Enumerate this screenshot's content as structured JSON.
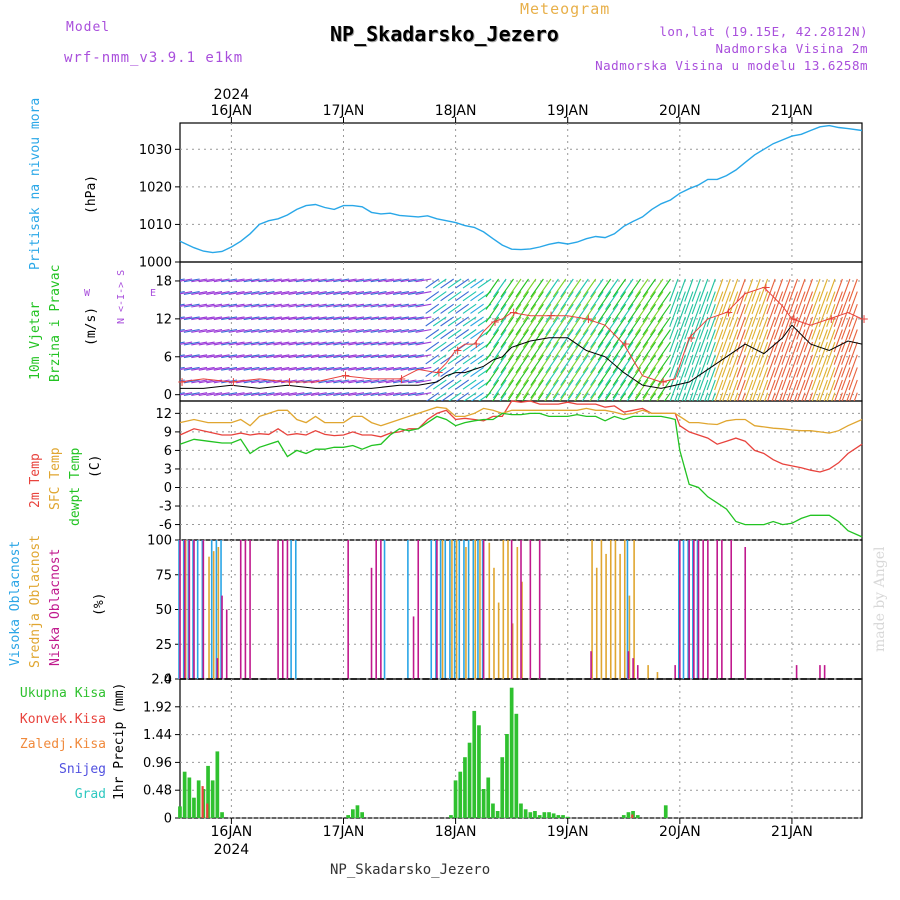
{
  "header": {
    "model_label": "Model",
    "model_name": "wrf-nmm_v3.9.1 e1km",
    "title": "Meteogram",
    "station": "NP_Skadarsko_Jezero",
    "lonlat": "lon,lat (19.15E, 42.2812N)",
    "elevation": "Nadmorska Visina 2m",
    "model_elevation": "Nadmorska Visina u modelu 13.6258m",
    "footer_station": "NP_Skadarsko_Jezero",
    "watermark": "made by Angel"
  },
  "x_axis": {
    "year": "2024",
    "days": [
      "16JAN",
      "17JAN",
      "18JAN",
      "19JAN",
      "20JAN",
      "21JAN"
    ],
    "day_positions_hours": [
      0,
      24,
      48,
      72,
      96,
      120
    ],
    "hours_start": -11,
    "hours_end": 135
  },
  "panels": {
    "pressure": {
      "title": "Pritisak na nivou mora",
      "unit": "(hPa)"
    },
    "wind": {
      "title_line1": "10m Vjetar",
      "title_line2": "Brzina i Pravac",
      "unit": "(m/s)",
      "compass": "N <-I-> S",
      "compass_w": "W",
      "compass_e": "E"
    },
    "temp": {
      "l1": "2m Temp",
      "l2": "SFC Temp",
      "l3": "dewpt Temp",
      "unit": "(C)"
    },
    "cloud": {
      "l1": "Visoka Oblacnost",
      "l2": "Srednja Oblacnost",
      "l3": "Niska Oblacnost",
      "unit": "(%)"
    },
    "precip": {
      "unit": "1hr Precip (mm)",
      "legend": [
        "Ukupna Kisa",
        "Konvek.Kisa",
        "Zaledj.Kisa",
        "Snijeg",
        "Grad"
      ]
    }
  },
  "colors": {
    "pressure": "#29a7e8",
    "t2m": "#e8433d",
    "tsfc": "#e0a630",
    "dewpt": "#22c322",
    "high_cloud": "#2aa5e6",
    "mid_cloud": "#e0a630",
    "low_cloud": "#c0198d",
    "precip_total": "#2fc12f",
    "precip_conv": "#e8433d",
    "precip_frz": "#f08a3c",
    "precip_snow": "#5050e0",
    "precip_grad": "#2ec8c0"
  },
  "chart_data": [
    {
      "type": "line",
      "title": "Pritisak na nivou mora",
      "ylabel": "(hPa)",
      "ylim": [
        1000,
        1037
      ],
      "yticks": [
        1000,
        1010,
        1020,
        1030
      ],
      "grid": true,
      "x_hours": [
        -11,
        -8,
        -6,
        -4,
        -2,
        0,
        2,
        4,
        6,
        8,
        10,
        12,
        14,
        16,
        18,
        20,
        22,
        24,
        26,
        28,
        30,
        32,
        34,
        36,
        38,
        40,
        42,
        44,
        46,
        48,
        50,
        52,
        54,
        56,
        58,
        60,
        62,
        64,
        66,
        68,
        70,
        72,
        74,
        76,
        78,
        80,
        82,
        84,
        86,
        88,
        90,
        92,
        94,
        96,
        98,
        100,
        102,
        104,
        106,
        108,
        110,
        112,
        114,
        116,
        118,
        120,
        122,
        124,
        126,
        128,
        130,
        132,
        135
      ],
      "series": [
        {
          "values": [
            1005.5,
            1003.8,
            1002.9,
            1002.5,
            1002.8,
            1004,
            1005.5,
            1007.5,
            1010,
            1011,
            1011.5,
            1012.5,
            1014,
            1015,
            1015.3,
            1014.5,
            1014,
            1015,
            1015,
            1014.7,
            1013.2,
            1012.8,
            1013,
            1012.4,
            1012.2,
            1012,
            1012.3,
            1011.5,
            1011,
            1010.5,
            1009.7,
            1009.2,
            1008,
            1006.2,
            1004.5,
            1003.4,
            1003.3,
            1003.5,
            1004,
            1004.7,
            1005.2,
            1004.8,
            1005.3,
            1006.2,
            1006.8,
            1006.5,
            1007.5,
            1009.5,
            1010.8,
            1012,
            1014,
            1015.5,
            1016.5,
            1018.3,
            1019.5,
            1020.5,
            1022,
            1022,
            1023,
            1024.5,
            1026.5,
            1028.5,
            1030,
            1031.5,
            1032.5,
            1033.5,
            1034,
            1035,
            1036,
            1036.3,
            1035.8,
            1035.5,
            1035
          ]
        }
      ]
    },
    {
      "type": "line",
      "title": "10m Vjetar Brzina i Pravac",
      "ylabel": "(m/s)",
      "ylim": [
        -1,
        21
      ],
      "yticks": [
        0,
        6,
        12,
        18
      ],
      "grid": true,
      "x_hours": [
        -11,
        -6,
        0,
        6,
        12,
        18,
        24,
        30,
        36,
        40,
        44,
        46,
        48,
        50,
        52,
        54,
        56,
        58,
        60,
        64,
        68,
        72,
        76,
        80,
        84,
        88,
        92,
        95,
        98,
        102,
        106,
        110,
        114,
        118,
        120,
        124,
        128,
        132,
        135
      ],
      "series": [
        {
          "name": "speed",
          "values": [
            1,
            1,
            1.5,
            1,
            1.5,
            1,
            1,
            1,
            1.5,
            1.5,
            2,
            3,
            3.5,
            3.5,
            4,
            4.5,
            5.5,
            6,
            7.5,
            8.5,
            9,
            9,
            7,
            6,
            3.5,
            1.5,
            1,
            1.5,
            2,
            4,
            6,
            8,
            6.5,
            9,
            11,
            8,
            7,
            8.5,
            8
          ]
        },
        {
          "name": "gust",
          "values": [
            2,
            2.5,
            2,
            2.5,
            2,
            2,
            3,
            2.5,
            2.5,
            4,
            3.5,
            5,
            7,
            8,
            8,
            10,
            11.5,
            12,
            13,
            12.5,
            12.5,
            12.5,
            12,
            11,
            8,
            3,
            2,
            2.5,
            9,
            12,
            13,
            16,
            17,
            14,
            12,
            11,
            12,
            13,
            12
          ]
        }
      ]
    },
    {
      "type": "line",
      "title": "2m Temp / SFC Temp / dewpt Temp",
      "ylabel": "(C)",
      "ylim": [
        -8.5,
        14
      ],
      "yticks": [
        -6,
        -3,
        0,
        3,
        6,
        9,
        12
      ],
      "grid": true,
      "x_hours": [
        -11,
        -8,
        -5,
        -2,
        0,
        2,
        4,
        6,
        8,
        10,
        12,
        14,
        16,
        18,
        20,
        22,
        24,
        26,
        28,
        30,
        32,
        34,
        36,
        38,
        40,
        42,
        44,
        46,
        48,
        50,
        52,
        54,
        56,
        58,
        60,
        62,
        64,
        66,
        68,
        70,
        72,
        74,
        76,
        78,
        80,
        82,
        84,
        86,
        88,
        90,
        92,
        94,
        95,
        96,
        98,
        100,
        102,
        104,
        106,
        108,
        110,
        112,
        114,
        116,
        118,
        120,
        122,
        124,
        126,
        128,
        130,
        132,
        135
      ],
      "series": [
        {
          "name": "2m Temp",
          "values": [
            8.5,
            9.5,
            9,
            8.5,
            8.5,
            8.8,
            8.5,
            8.7,
            8.6,
            9.5,
            8.5,
            8.7,
            8.5,
            9.2,
            8.6,
            8.4,
            8.5,
            9,
            8.5,
            8.5,
            8.2,
            8.8,
            9,
            9.5,
            9.5,
            11,
            12,
            12.5,
            11,
            11.2,
            11,
            10.8,
            11.5,
            11.5,
            14,
            13.8,
            14,
            13.5,
            13.5,
            13.5,
            13.8,
            13.5,
            13.5,
            13.5,
            13,
            13.2,
            12.2,
            12.5,
            12.8,
            12,
            12,
            12,
            12,
            10,
            9,
            8.5,
            8,
            7,
            7.5,
            8,
            7.5,
            6,
            5.5,
            4.5,
            3.8,
            3.5,
            3.2,
            2.8,
            2.5,
            3,
            4,
            5.5,
            7
          ]
        },
        {
          "name": "SFC Temp",
          "values": [
            10.5,
            11,
            10.5,
            10.5,
            10.5,
            11,
            10,
            11.5,
            12,
            12.5,
            12.5,
            11,
            10.5,
            11.5,
            10.5,
            10.5,
            10.5,
            11.5,
            11.5,
            10.5,
            10,
            10.5,
            11,
            11.5,
            12,
            12.5,
            13,
            12.8,
            11.5,
            11.5,
            12,
            12.8,
            12.5,
            12,
            12.5,
            12.5,
            12.5,
            12.5,
            12.5,
            12.5,
            12.5,
            12.5,
            12.8,
            12.5,
            12.5,
            12.2,
            11.8,
            12,
            12.5,
            12,
            12,
            12,
            12,
            11.5,
            10.5,
            10.5,
            10.3,
            10.2,
            10.8,
            11,
            11,
            10,
            9.8,
            9.6,
            9.5,
            9.3,
            9.2,
            9.2,
            9,
            8.8,
            9.2,
            10,
            11
          ]
        },
        {
          "name": "dewpt Temp",
          "values": [
            7,
            7.8,
            7.5,
            7.2,
            7.2,
            7.8,
            5.5,
            6.5,
            7,
            7.5,
            5,
            6,
            5.5,
            6.2,
            6.2,
            6.5,
            6.5,
            6.8,
            6.2,
            6.8,
            7,
            8.5,
            9.5,
            9.2,
            9.5,
            10.5,
            11.5,
            11,
            10,
            10.5,
            10.8,
            11,
            11,
            12,
            11.8,
            11.8,
            12,
            12,
            11.5,
            11.5,
            11.5,
            11.8,
            11.5,
            11.5,
            10.8,
            11.5,
            11,
            11.5,
            11.5,
            11.5,
            11.5,
            11.2,
            11,
            6,
            0.5,
            0,
            -1.5,
            -2.5,
            -3.5,
            -5.5,
            -6,
            -6,
            -6,
            -5.5,
            -6,
            -5.8,
            -5,
            -4.5,
            -4.5,
            -4.5,
            -5.5,
            -7,
            -8
          ]
        }
      ]
    },
    {
      "type": "bar",
      "title": "Visoka / Srednja / Niska Oblacnost",
      "ylabel": "(%)",
      "ylim": [
        0,
        100
      ],
      "yticks": [
        0,
        25,
        50,
        75,
        100
      ],
      "grid": true,
      "series": [
        {
          "name": "Visoka Oblacnost",
          "hours": [
            -11,
            -10,
            -9,
            -8,
            -7,
            -6,
            -4,
            -3,
            -2,
            13,
            14,
            33,
            38,
            43,
            44,
            45,
            46,
            47,
            48,
            49,
            50,
            51,
            52,
            53,
            54,
            85,
            96,
            97,
            98,
            99,
            100
          ],
          "values": [
            100,
            100,
            100,
            100,
            100,
            100,
            100,
            100,
            100,
            100,
            100,
            100,
            100,
            100,
            100,
            100,
            100,
            100,
            100,
            100,
            100,
            100,
            100,
            100,
            100,
            100,
            100,
            100,
            100,
            100,
            100
          ]
        },
        {
          "name": "Srednja Oblacnost",
          "hours": [
            -10,
            -5,
            -4,
            -3,
            45,
            47,
            48,
            50,
            52,
            53,
            55,
            56,
            57,
            58,
            59,
            60,
            61,
            62,
            77,
            78,
            79,
            80,
            81,
            82,
            83,
            84,
            85,
            86,
            89,
            91
          ],
          "values": [
            100,
            88,
            92,
            95,
            100,
            100,
            100,
            95,
            100,
            100,
            98,
            80,
            55,
            100,
            100,
            40,
            95,
            70,
            100,
            80,
            100,
            90,
            100,
            100,
            90,
            100,
            60,
            100,
            10,
            5
          ]
        },
        {
          "name": "Niska Oblacnost",
          "hours": [
            -11,
            -10,
            -9,
            -8,
            -6,
            -3,
            -2,
            -1,
            2,
            3,
            4,
            10,
            11,
            12,
            25,
            30,
            31,
            32,
            39,
            40,
            44,
            54,
            60,
            62,
            64,
            66,
            77,
            85,
            86,
            87,
            95,
            96,
            98,
            99,
            100,
            101,
            102,
            104,
            105,
            107,
            110,
            121,
            126,
            127
          ],
          "values": [
            100,
            100,
            100,
            100,
            100,
            15,
            60,
            50,
            100,
            100,
            100,
            100,
            100,
            100,
            100,
            80,
            100,
            100,
            45,
            100,
            100,
            100,
            100,
            100,
            100,
            100,
            20,
            20,
            15,
            10,
            10,
            100,
            100,
            100,
            100,
            100,
            100,
            100,
            100,
            100,
            95,
            10,
            10,
            10
          ]
        }
      ]
    },
    {
      "type": "bar",
      "title": "1hr Precip",
      "ylabel": "1hr Precip (mm)",
      "ylim": [
        0,
        2.4
      ],
      "yticks": [
        0,
        0.48,
        0.96,
        1.44,
        1.92,
        2.4
      ],
      "grid": true,
      "series": [
        {
          "name": "Ukupna Kisa",
          "hours": [
            -11,
            -10,
            -9,
            -8,
            -7,
            -6,
            -5,
            -4,
            -3,
            -2,
            25,
            26,
            27,
            28,
            47,
            48,
            49,
            50,
            51,
            52,
            53,
            54,
            55,
            56,
            57,
            58,
            59,
            60,
            61,
            62,
            63,
            64,
            65,
            66,
            67,
            68,
            69,
            70,
            71,
            72,
            84,
            85,
            86,
            87,
            93
          ],
          "values": [
            0.2,
            0.8,
            0.7,
            0.35,
            0.65,
            0.5,
            0.9,
            0.65,
            1.15,
            0.1,
            0.05,
            0.15,
            0.22,
            0.1,
            0.05,
            0.65,
            0.8,
            1.05,
            1.3,
            1.85,
            1.6,
            0.5,
            0.7,
            0.25,
            0.12,
            1.05,
            1.45,
            2.25,
            1.8,
            0.25,
            0.15,
            0.1,
            0.12,
            0.05,
            0.1,
            0.1,
            0.08,
            0.05,
            0.05,
            0.02,
            0.05,
            0.1,
            0.12,
            0.05,
            0.22
          ]
        },
        {
          "name": "Konvek.Kisa",
          "hours": [
            -6,
            -5,
            86
          ],
          "values": [
            0.55,
            0.25,
            0.06
          ]
        }
      ]
    }
  ]
}
